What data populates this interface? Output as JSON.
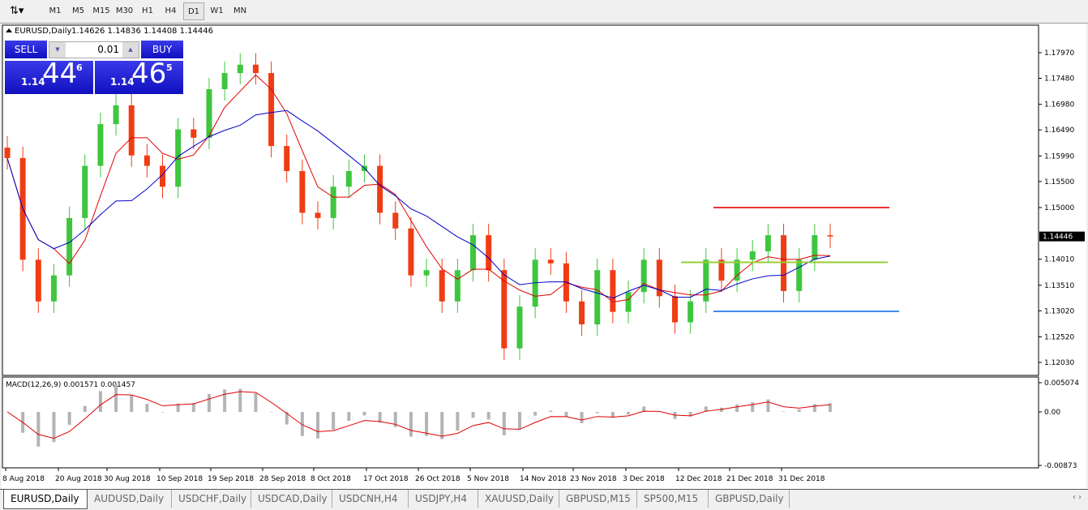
{
  "toolbar": {
    "timeframes": [
      "M1",
      "M5",
      "M15",
      "M30",
      "H1",
      "H4",
      "D1",
      "W1",
      "MN"
    ],
    "active": "D1"
  },
  "chart": {
    "header": "EURUSD,Daily",
    "ohlc_text": "1.14626 1.14836 1.14408 1.14446",
    "current_price": "1.14446",
    "price_ticks": [
      "1.17970",
      "1.17480",
      "1.16980",
      "1.16490",
      "1.15990",
      "1.15500",
      "1.15000",
      "1.14010",
      "1.13510",
      "1.13020",
      "1.12520",
      "1.12030"
    ],
    "macd_label": "MACD(12,26,9) 0.001571 0.001457",
    "macd_ticks": [
      "0.005074",
      "0.00",
      "-0.00873"
    ],
    "date_labels": [
      "8 Aug 2018",
      "20 Aug 2018",
      "30 Aug 2018",
      "10 Sep 2018",
      "19 Sep 2018",
      "28 Sep 2018",
      "8 Oct 2018",
      "17 Oct 2018",
      "26 Oct 2018",
      "5 Nov 2018",
      "14 Nov 2018",
      "23 Nov 2018",
      "3 Dec 2018",
      "12 Dec 2018",
      "21 Dec 2018",
      "31 Dec 2018"
    ],
    "colors": {
      "bull": "#3ec63e",
      "bear": "#f03c14",
      "ma_fast": "#e00000",
      "ma_slow": "#0000c8",
      "level_high": "#f03030",
      "level_mid": "#9acd32",
      "level_low": "#3c8ce6"
    }
  },
  "chart_data": {
    "type": "candlestick",
    "ylim": [
      1.1203,
      1.1797
    ],
    "closes": [
      1.1595,
      1.14,
      1.132,
      1.137,
      1.148,
      1.158,
      1.166,
      1.1696,
      1.16,
      1.158,
      1.154,
      1.165,
      1.1634,
      1.1727,
      1.1758,
      1.1774,
      1.1758,
      1.1618,
      1.157,
      1.149,
      1.148,
      1.154,
      1.157,
      1.158,
      1.149,
      1.146,
      1.137,
      1.138,
      1.132,
      1.138,
      1.1447,
      1.138,
      1.123,
      1.131,
      1.14,
      1.1393,
      1.132,
      1.1276,
      1.138,
      1.13,
      1.1338,
      1.14,
      1.133,
      1.128,
      1.132,
      1.14,
      1.136,
      1.14,
      1.1416,
      1.1447,
      1.134,
      1.14,
      1.1447,
      1.14446
    ],
    "levels": [
      1.15,
      1.1395,
      1.1301
    ]
  },
  "trade": {
    "sell_label": "SELL",
    "buy_label": "BUY",
    "lot": "0.01",
    "sell_prefix": "1.14",
    "sell_big": "44",
    "sell_sup": "6",
    "buy_prefix": "1.14",
    "buy_big": "46",
    "buy_sup": "5"
  },
  "tabs": [
    "EURUSD,Daily",
    "AUDUSD,Daily",
    "USDCHF,Daily",
    "USDCAD,Daily",
    "USDCNH,H4",
    "USDJPY,H4",
    "XAUUSD,Daily",
    "GBPUSD,M15",
    "SP500,M15",
    "GBPUSD,Daily"
  ]
}
